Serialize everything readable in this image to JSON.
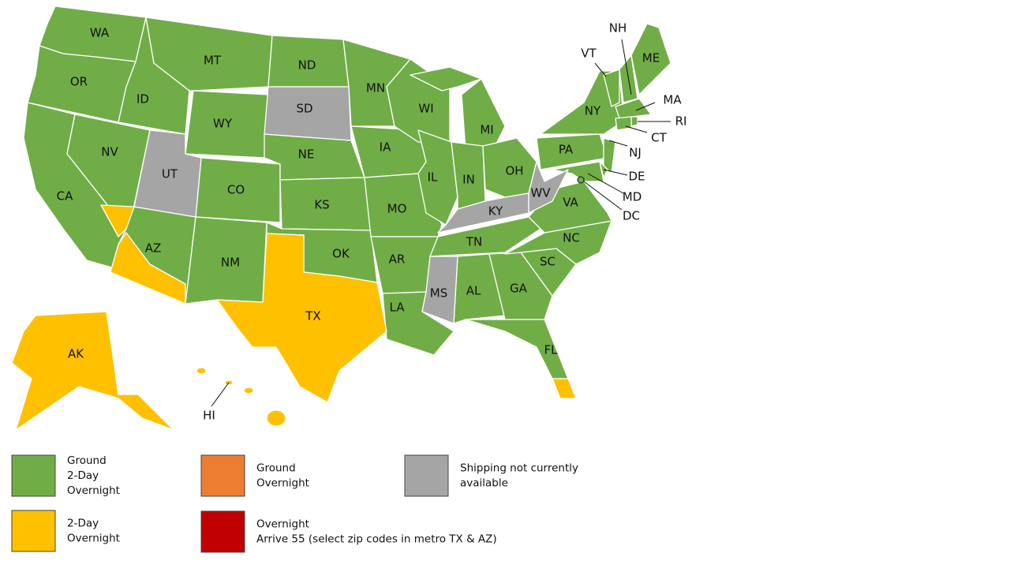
{
  "legend": [
    {
      "text": [
        "Ground",
        "2-Day",
        "Overnight"
      ],
      "color": "#70ad47",
      "states": [
        "WA",
        "OR",
        "CA",
        "NV",
        "ID",
        "MT",
        "WY",
        "CO",
        "AZ",
        "NM",
        "ND",
        "NE",
        "KS",
        "OK",
        "MN",
        "IA",
        "MO",
        "AR",
        "LA",
        "WI",
        "IL",
        "MI",
        "IN",
        "OH",
        "TN",
        "AL",
        "GA",
        "FL",
        "SC",
        "NC",
        "VA",
        "PA",
        "NY",
        "VT",
        "NH",
        "ME",
        "MA",
        "RI",
        "CT",
        "NJ",
        "DE",
        "MD",
        "DC"
      ]
    },
    {
      "text": [
        "2-Day",
        "Overnight"
      ],
      "color": "#ffc000",
      "states": [
        "TX",
        "AK",
        "HI"
      ]
    },
    {
      "text": [
        "Ground",
        "Overnight"
      ],
      "color": "#ed7d31",
      "states": []
    },
    {
      "text": [
        "Overnight",
        "Arrive 55 (select zip codes in metro TX & AZ)"
      ],
      "color": "#c00000",
      "states": []
    },
    {
      "text": [
        "Shipping not currently",
        "available"
      ],
      "color": "#a5a5a5",
      "states": [
        "UT",
        "SD",
        "KY",
        "WV",
        "MS"
      ]
    }
  ]
}
